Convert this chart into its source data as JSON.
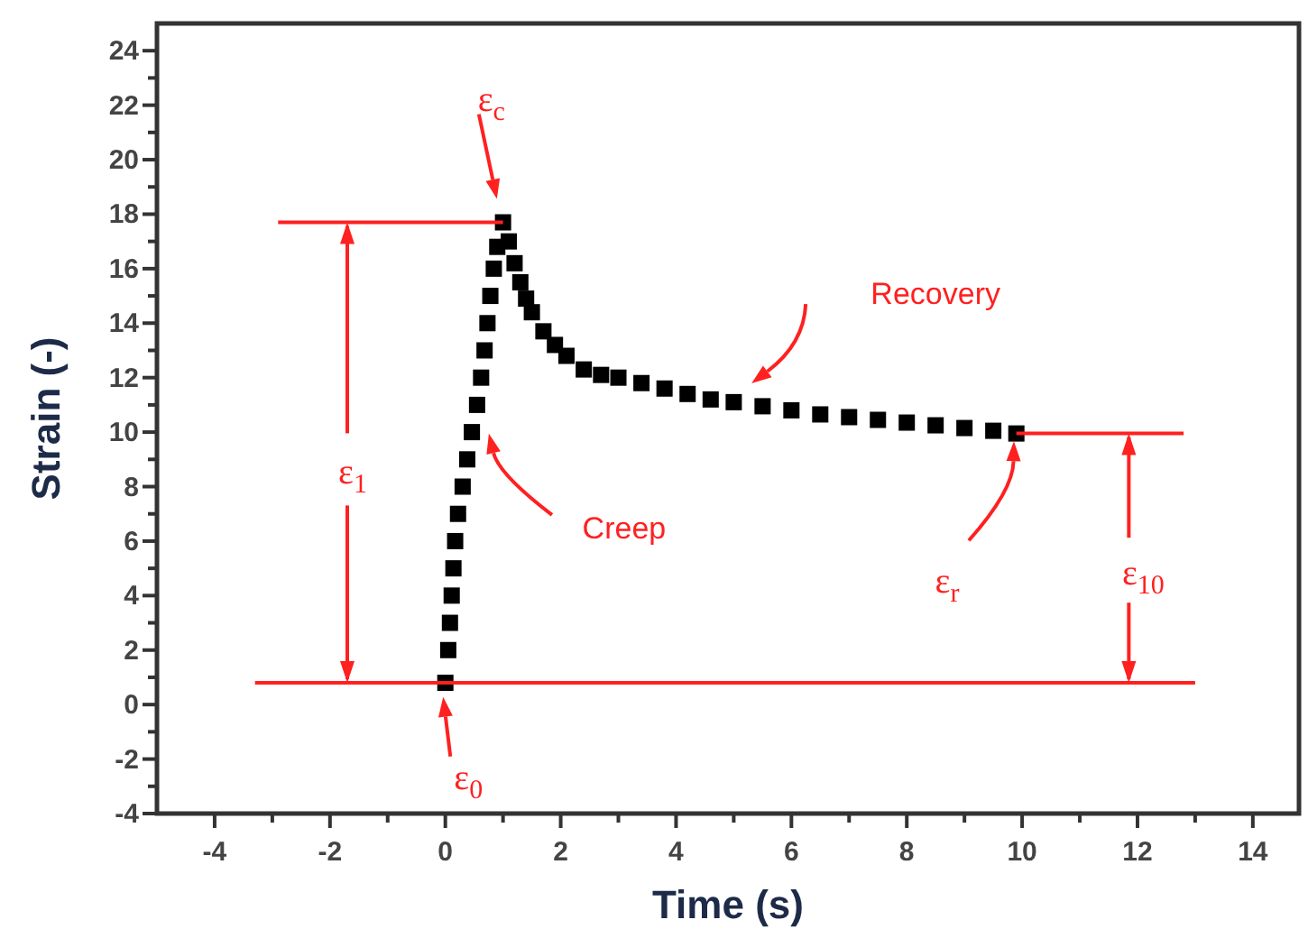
{
  "chart_data": {
    "type": "scatter",
    "xlabel": "Time (s)",
    "ylabel": "Strain (-)",
    "xlim": [
      -5,
      14.8
    ],
    "ylim": [
      -4,
      25
    ],
    "xticks": [
      -4,
      {
        "value": -3,
        "label": null
      },
      -2,
      {
        "value": -1,
        "label": null
      },
      0,
      {
        "value": 1,
        "label": null
      },
      2,
      {
        "value": 3,
        "label": null
      },
      4,
      {
        "value": 5,
        "label": null
      },
      6,
      {
        "value": 7,
        "label": null
      },
      8,
      {
        "value": 9,
        "label": null
      },
      10,
      {
        "value": 11,
        "label": null
      },
      12,
      {
        "value": 13,
        "label": null
      },
      14
    ],
    "yticks": [
      -4,
      {
        "value": -3,
        "label": null
      },
      -2,
      {
        "value": -1,
        "label": null
      },
      0,
      {
        "value": 1,
        "label": null
      },
      2,
      {
        "value": 3,
        "label": null
      },
      4,
      {
        "value": 5,
        "label": null
      },
      6,
      {
        "value": 7,
        "label": null
      },
      8,
      {
        "value": 9,
        "label": null
      },
      10,
      {
        "value": 11,
        "label": null
      },
      12,
      {
        "value": 13,
        "label": null
      },
      14,
      {
        "value": 15,
        "label": null
      },
      16,
      {
        "value": 17,
        "label": null
      },
      18,
      {
        "value": 19,
        "label": null
      },
      20,
      {
        "value": 21,
        "label": null
      },
      22,
      {
        "value": 23,
        "label": null
      },
      24
    ],
    "grid": false,
    "series": [
      {
        "marker": "square",
        "color": "#000000",
        "x": [
          0,
          0.05,
          0.08,
          0.11,
          0.14,
          0.17,
          0.22,
          0.3,
          0.38,
          0.46,
          0.55,
          0.62,
          0.68,
          0.73,
          0.78,
          0.84,
          0.9,
          1.0,
          1.1,
          1.2,
          1.3,
          1.4,
          1.5,
          1.7,
          1.9,
          2.1,
          2.4,
          2.7,
          3.0,
          3.4,
          3.8,
          4.2,
          4.6,
          5.0,
          5.5,
          6.0,
          6.5,
          7.0,
          7.5,
          8.0,
          8.5,
          9.0,
          9.5,
          9.9
        ],
        "values": [
          0.8,
          2,
          3,
          4,
          5,
          6,
          7,
          8,
          9,
          10,
          11,
          12,
          13,
          14,
          15,
          16,
          16.8,
          17.7,
          17.0,
          16.2,
          15.5,
          14.9,
          14.4,
          13.7,
          13.2,
          12.8,
          12.3,
          12.1,
          12.0,
          11.8,
          11.6,
          11.4,
          11.2,
          11.1,
          10.95,
          10.8,
          10.65,
          10.55,
          10.45,
          10.35,
          10.25,
          10.15,
          10.05,
          9.95
        ]
      },
      {
        "type": "line",
        "line_style": "solid",
        "color": "#ff2020",
        "x": [
          -2.9,
          1.0
        ],
        "values": [
          17.7,
          17.7
        ]
      },
      {
        "type": "line",
        "line_style": "solid",
        "color": "#ff2020",
        "x": [
          -3.3,
          13.0
        ],
        "values": [
          0.8,
          0.8
        ]
      },
      {
        "type": "line",
        "line_style": "solid",
        "color": "#ff2020",
        "x": [
          9.9,
          12.8
        ],
        "values": [
          9.95,
          9.95
        ]
      }
    ],
    "annotations": [
      "ε$_{c}$",
      "ε$_{0}$",
      "Creep",
      "Recovery",
      "ε$_{r}$",
      {
        "text": "ε$_{1}$",
        "x": -1.7,
        "y": 17.7
      },
      {
        "text": "ε$_{10}$",
        "x": 11.85,
        "y": 9.95
      }
    ]
  }
}
